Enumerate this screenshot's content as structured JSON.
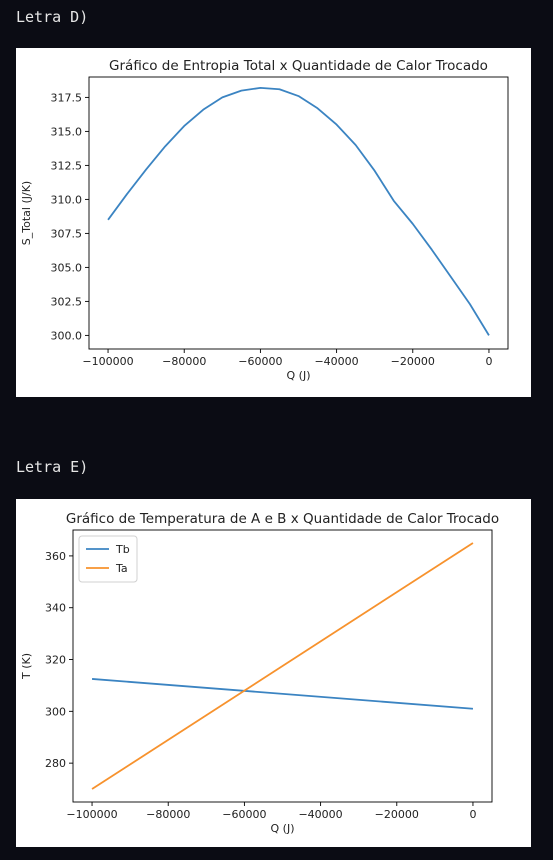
{
  "cells": [
    {
      "label": "Letra D)"
    },
    {
      "label": "Letra E)"
    }
  ],
  "colors": {
    "background": "#0b0c14",
    "series_blue": "#3b84c2",
    "series_orange": "#f7922d"
  },
  "chart_data": [
    {
      "type": "line",
      "title": "Gráfico de Entropia Total x Quantidade de Calor Trocado",
      "xlabel": "Q (J)",
      "ylabel": "S_Total (J/K)",
      "xlim": [
        -105000,
        5000
      ],
      "ylim": [
        299.0,
        319.0
      ],
      "xticks": [
        -100000,
        -80000,
        -60000,
        -40000,
        -20000,
        0
      ],
      "xtick_labels": [
        "−100000",
        "−80000",
        "−60000",
        "−40000",
        "−20000",
        "0"
      ],
      "yticks": [
        300.0,
        302.5,
        305.0,
        307.5,
        310.0,
        312.5,
        315.0,
        317.5
      ],
      "ytick_labels": [
        "300.0",
        "302.5",
        "305.0",
        "307.5",
        "310.0",
        "312.5",
        "315.0",
        "317.5"
      ],
      "grid": false,
      "series": [
        {
          "color": "#3b84c2",
          "x": [
            -100000,
            -95000,
            -90000,
            -85000,
            -80000,
            -75000,
            -70000,
            -65000,
            -60000,
            -55000,
            -50000,
            -45000,
            -40000,
            -35000,
            -30000,
            -25000,
            -20000,
            -15000,
            -10000,
            -5000,
            0
          ],
          "y": [
            308.5,
            310.4,
            312.2,
            313.9,
            315.4,
            316.6,
            317.5,
            318.0,
            318.2,
            318.1,
            317.6,
            316.7,
            315.5,
            314.0,
            312.1,
            309.9,
            308.2,
            306.3,
            304.3,
            302.3,
            300.0
          ]
        }
      ]
    },
    {
      "type": "line",
      "title": "Gráfico de Temperatura de A e B x Quantidade de Calor Trocado",
      "xlabel": "Q (J)",
      "ylabel": "T (K)",
      "xlim": [
        -105000,
        5000
      ],
      "ylim": [
        265,
        370
      ],
      "xticks": [
        -100000,
        -80000,
        -60000,
        -40000,
        -20000,
        0
      ],
      "xtick_labels": [
        "−100000",
        "−80000",
        "−60000",
        "−40000",
        "−20000",
        "0"
      ],
      "yticks": [
        280,
        300,
        320,
        340,
        360
      ],
      "ytick_labels": [
        "280",
        "300",
        "320",
        "340",
        "360"
      ],
      "grid": false,
      "legend": "top-left",
      "series": [
        {
          "name": "Tb",
          "color": "#3b84c2",
          "x": [
            -100000,
            0
          ],
          "y": [
            312.5,
            301.0
          ]
        },
        {
          "name": "Ta",
          "color": "#f7922d",
          "x": [
            -100000,
            0
          ],
          "y": [
            270.0,
            365.0
          ]
        }
      ]
    }
  ]
}
